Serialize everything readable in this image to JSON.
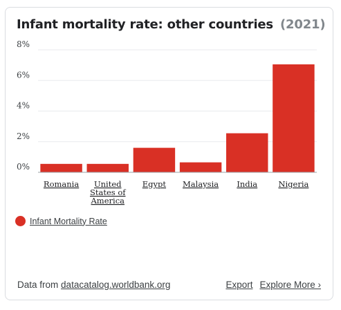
{
  "card": {
    "title": "Infant mortality rate: other countries",
    "year": "(2021)"
  },
  "legend": {
    "label": "Infant Mortality Rate",
    "color": "#d93025"
  },
  "footer": {
    "source_prefix": "Data from",
    "source_link": "datacatalog.worldbank.org",
    "export_label": "Export",
    "explore_label": "Explore More ›"
  },
  "chart_data": {
    "type": "bar",
    "categories": [
      "Romania",
      "United States of America",
      "Egypt",
      "Malaysia",
      "India",
      "Nigeria"
    ],
    "category_lines": [
      [
        "Romania"
      ],
      [
        "United",
        "States of",
        "America"
      ],
      [
        "Egypt"
      ],
      [
        "Malaysia"
      ],
      [
        "India"
      ],
      [
        "Nigeria"
      ]
    ],
    "values": [
      0.55,
      0.55,
      1.6,
      0.65,
      2.55,
      7.05
    ],
    "ylim": [
      0,
      8
    ],
    "yticks": [
      0,
      2,
      4,
      6,
      8
    ],
    "ytick_labels": [
      "0%",
      "2%",
      "4%",
      "6%",
      "8%"
    ],
    "bar_color": "#d93025",
    "grid": true
  }
}
